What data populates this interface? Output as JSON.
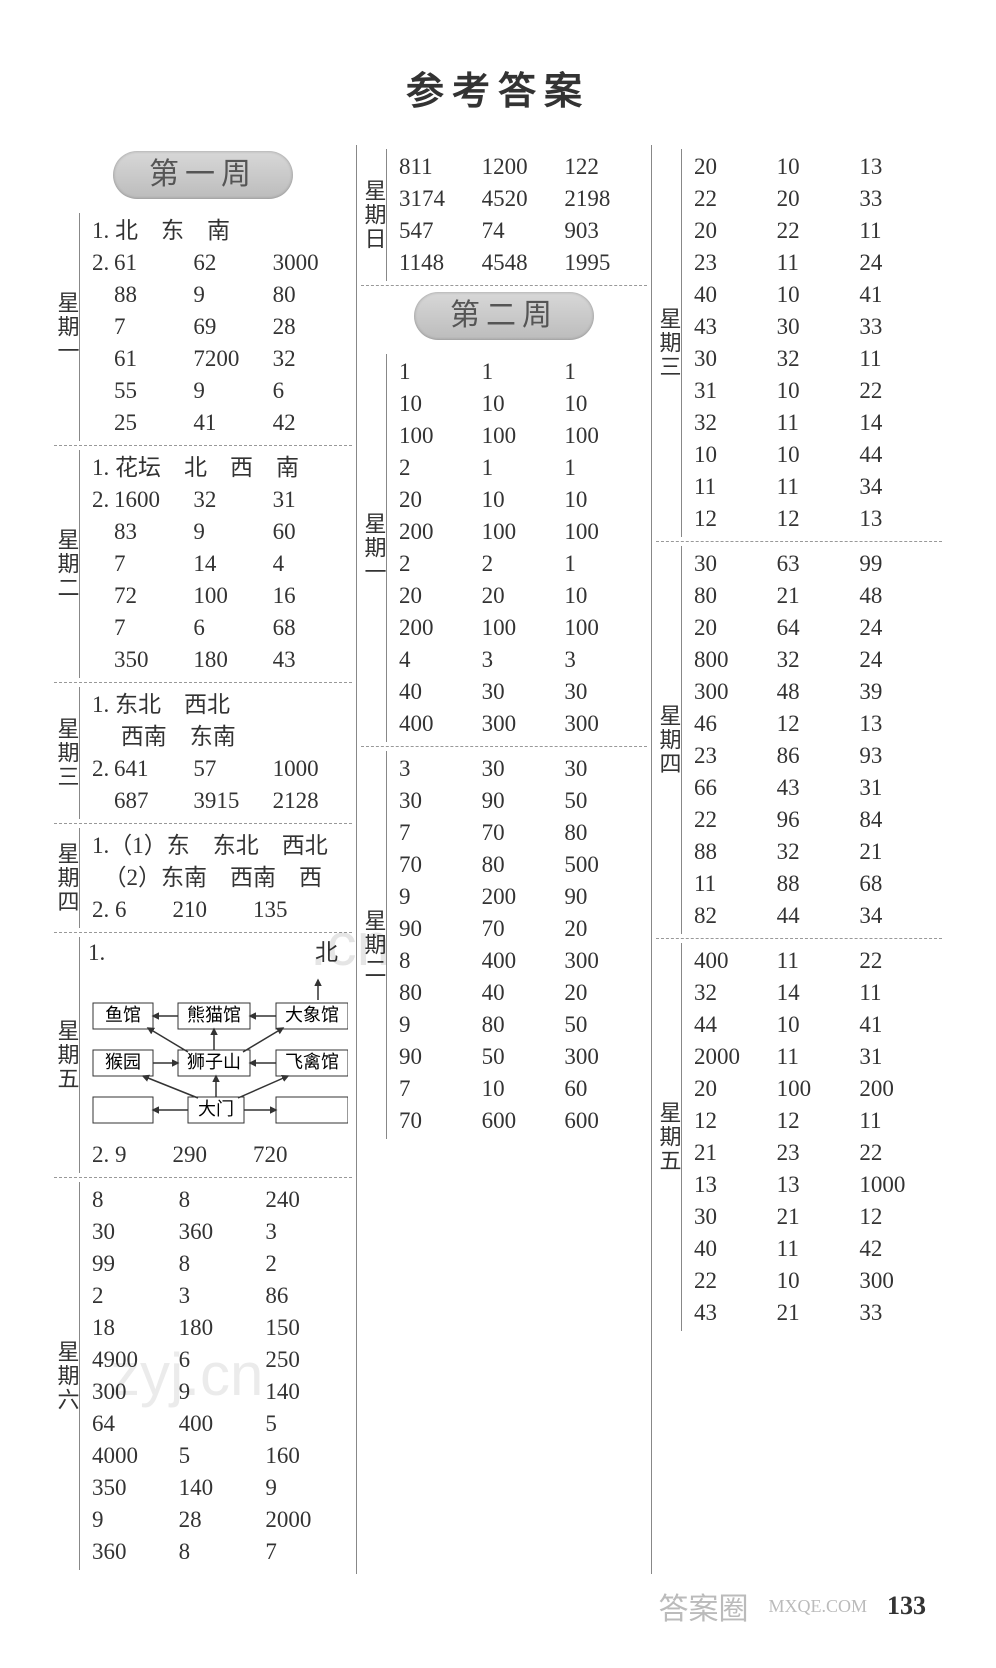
{
  "title": "参考答案",
  "page_number": "133",
  "week1_label": "第一周",
  "week2_label": "第二周",
  "watermark": ".cn",
  "watermark2": "zyj.cn",
  "foot_brand": "答案圈",
  "foot_site": "MXQE.COM",
  "col1": {
    "mon": {
      "label": "星期一",
      "line1": "1. 北　东　南",
      "line2_prefix": "2. ",
      "rows": [
        [
          "61",
          "62",
          "3000"
        ],
        [
          "88",
          "9",
          "80"
        ],
        [
          "7",
          "69",
          "28"
        ],
        [
          "61",
          "7200",
          "32"
        ],
        [
          "55",
          "9",
          "6"
        ],
        [
          "25",
          "41",
          "42"
        ]
      ]
    },
    "tue": {
      "label": "星期二",
      "line1": "1. 花坛　北　西　南",
      "line2_prefix": "2. ",
      "rows": [
        [
          "1600",
          "32",
          "31"
        ],
        [
          "83",
          "9",
          "60"
        ],
        [
          "7",
          "14",
          "4"
        ],
        [
          "72",
          "100",
          "16"
        ],
        [
          "7",
          "6",
          "68"
        ],
        [
          "350",
          "180",
          "43"
        ]
      ]
    },
    "wed": {
      "label": "星期三",
      "line1": "1. 东北　西北",
      "line2": "　 西南　东南",
      "line3_prefix": "2. ",
      "rows": [
        [
          "641",
          "57",
          "1000"
        ],
        [
          "687",
          "3915",
          "2128"
        ]
      ]
    },
    "thu": {
      "label": "星期四",
      "line1": "1.（1）东　东北　西北",
      "line2": "　（2）东南　西南　西",
      "line3": "2. 6　　210　　135"
    },
    "fri": {
      "label": "星期五",
      "line1": "1.",
      "north": "北",
      "boxes": {
        "fish": "鱼馆",
        "panda": "熊猫馆",
        "elephant": "大象馆",
        "monkey": "猴园",
        "lion": "狮子山",
        "bird": "飞禽馆",
        "gate": "大门"
      },
      "line2": "2. 9　　290　　720"
    },
    "sat": {
      "label": "星期六",
      "rows": [
        [
          "8",
          "8",
          "240"
        ],
        [
          "30",
          "360",
          "3"
        ],
        [
          "99",
          "8",
          "2"
        ],
        [
          "2",
          "3",
          "86"
        ],
        [
          "18",
          "180",
          "150"
        ],
        [
          "4900",
          "6",
          "250"
        ],
        [
          "300",
          "9",
          "140"
        ],
        [
          "64",
          "400",
          "5"
        ],
        [
          "4000",
          "5",
          "160"
        ],
        [
          "350",
          "140",
          "9"
        ],
        [
          "9",
          "28",
          "2000"
        ],
        [
          "360",
          "8",
          "7"
        ]
      ]
    }
  },
  "col2": {
    "sun": {
      "label": "星期日",
      "rows": [
        [
          "811",
          "1200",
          "122"
        ],
        [
          "3174",
          "4520",
          "2198"
        ],
        [
          "547",
          "74",
          "903"
        ],
        [
          "1148",
          "4548",
          "1995"
        ]
      ]
    },
    "w2_mon": {
      "label": "星期一",
      "rows": [
        [
          "1",
          "1",
          "1"
        ],
        [
          "10",
          "10",
          "10"
        ],
        [
          "100",
          "100",
          "100"
        ],
        [
          "2",
          "1",
          "1"
        ],
        [
          "20",
          "10",
          "10"
        ],
        [
          "200",
          "100",
          "100"
        ],
        [
          "2",
          "2",
          "1"
        ],
        [
          "20",
          "20",
          "10"
        ],
        [
          "200",
          "100",
          "100"
        ],
        [
          "4",
          "3",
          "3"
        ],
        [
          "40",
          "30",
          "30"
        ],
        [
          "400",
          "300",
          "300"
        ]
      ]
    },
    "w2_tue": {
      "label": "星期二",
      "rows": [
        [
          "3",
          "30",
          "30"
        ],
        [
          "30",
          "90",
          "50"
        ],
        [
          "7",
          "70",
          "80"
        ],
        [
          "70",
          "80",
          "500"
        ],
        [
          "9",
          "200",
          "90"
        ],
        [
          "90",
          "70",
          "20"
        ],
        [
          "8",
          "400",
          "300"
        ],
        [
          "80",
          "40",
          "20"
        ],
        [
          "9",
          "80",
          "50"
        ],
        [
          "90",
          "50",
          "300"
        ],
        [
          "7",
          "10",
          "60"
        ],
        [
          "70",
          "600",
          "600"
        ]
      ]
    }
  },
  "col3": {
    "w2_wed": {
      "label": "星期三",
      "rows": [
        [
          "20",
          "10",
          "13"
        ],
        [
          "22",
          "20",
          "33"
        ],
        [
          "20",
          "22",
          "11"
        ],
        [
          "23",
          "11",
          "24"
        ],
        [
          "40",
          "10",
          "41"
        ],
        [
          "43",
          "30",
          "33"
        ],
        [
          "30",
          "32",
          "11"
        ],
        [
          "31",
          "10",
          "22"
        ],
        [
          "32",
          "11",
          "14"
        ],
        [
          "10",
          "10",
          "44"
        ],
        [
          "11",
          "11",
          "34"
        ],
        [
          "12",
          "12",
          "13"
        ]
      ]
    },
    "w2_thu": {
      "label": "星期四",
      "rows": [
        [
          "30",
          "63",
          "99"
        ],
        [
          "80",
          "21",
          "48"
        ],
        [
          "20",
          "64",
          "24"
        ],
        [
          "800",
          "32",
          "24"
        ],
        [
          "300",
          "48",
          "39"
        ],
        [
          "46",
          "12",
          "13"
        ],
        [
          "23",
          "86",
          "93"
        ],
        [
          "66",
          "43",
          "31"
        ],
        [
          "22",
          "96",
          "84"
        ],
        [
          "88",
          "32",
          "21"
        ],
        [
          "11",
          "88",
          "68"
        ],
        [
          "82",
          "44",
          "34"
        ]
      ]
    },
    "w2_fri": {
      "label": "星期五",
      "rows": [
        [
          "400",
          "11",
          "22"
        ],
        [
          "32",
          "14",
          "11"
        ],
        [
          "44",
          "10",
          "41"
        ],
        [
          "2000",
          "11",
          "31"
        ],
        [
          "20",
          "100",
          "200"
        ],
        [
          "12",
          "12",
          "11"
        ],
        [
          "21",
          "23",
          "22"
        ],
        [
          "13",
          "13",
          "1000"
        ],
        [
          "30",
          "21",
          "12"
        ],
        [
          "40",
          "11",
          "42"
        ],
        [
          "22",
          "10",
          "300"
        ],
        [
          "43",
          "21",
          "33"
        ]
      ]
    }
  }
}
